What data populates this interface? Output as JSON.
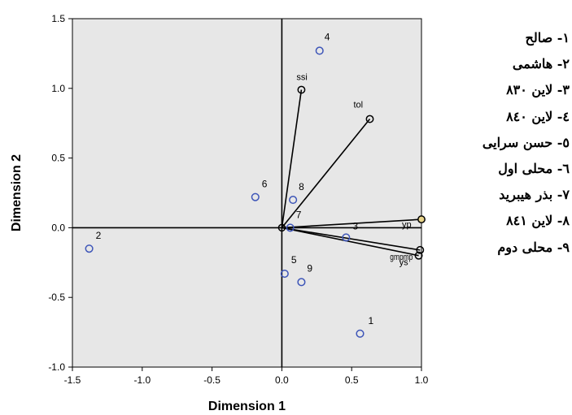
{
  "chart_data": {
    "type": "scatter",
    "xlabel": "Dimension 1",
    "ylabel": "Dimension 2",
    "xlim": [
      -1.5,
      1.0
    ],
    "ylim": [
      -1.0,
      1.5
    ],
    "x_ticks": [
      -1.5,
      -1.0,
      -0.5,
      0.0,
      0.5,
      1.0
    ],
    "x_tick_labels": [
      "-1.5",
      "-1.0",
      "-0.5",
      "0.0",
      "0.5",
      "1.0"
    ],
    "y_ticks": [
      -1.0,
      -0.5,
      0.0,
      0.5,
      1.0,
      1.5
    ],
    "y_tick_labels": [
      "-1.0",
      "-0.5",
      "0.0",
      "0.5",
      "1.0",
      "1.5"
    ],
    "grid": false,
    "legend_position": "right",
    "points": [
      {
        "label": "1",
        "x": 0.56,
        "y": -0.76
      },
      {
        "label": "2",
        "x": -1.38,
        "y": -0.15
      },
      {
        "label": "3",
        "x": 0.46,
        "y": -0.07
      },
      {
        "label": "4",
        "x": 0.27,
        "y": 1.27
      },
      {
        "label": "5",
        "x": 0.02,
        "y": -0.33
      },
      {
        "label": "6",
        "x": -0.19,
        "y": 0.22
      },
      {
        "label": "7",
        "x": 0.06,
        "y": 0.0
      },
      {
        "label": "8",
        "x": 0.08,
        "y": 0.2
      },
      {
        "label": "9",
        "x": 0.14,
        "y": -0.39
      }
    ],
    "vectors": [
      {
        "label": "ssi",
        "x": 0.14,
        "y": 0.99
      },
      {
        "label": "tol",
        "x": 0.63,
        "y": 0.78
      },
      {
        "label": "yp",
        "x": 1.0,
        "y": 0.06
      },
      {
        "label": "gmp",
        "x": 0.99,
        "y": -0.16
      },
      {
        "label": "ys",
        "x": 0.98,
        "y": -0.2
      }
    ],
    "overlapping_vector_text": "gmpmp"
  },
  "legend": {
    "items": [
      "١- صالح",
      "٢- هاشمی",
      "٣- لاین ٨٣٠",
      "٤- لاین ٨٤٠",
      "٥- حسن سرایی",
      "٦- محلی اول",
      "٧- بذر هیبرید",
      "٨- لاین ٨٤١",
      "٩- محلی دوم"
    ]
  },
  "colors": {
    "plot_background": "#e7e7e7",
    "point_color": "#3d55b8",
    "vector_color": "#000000",
    "yp_marker_fill": "#e8d48a"
  }
}
